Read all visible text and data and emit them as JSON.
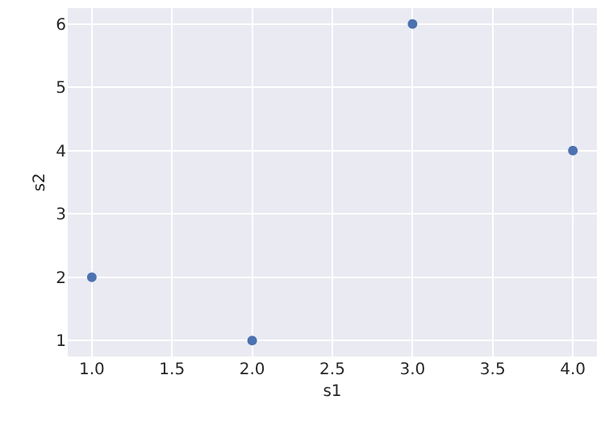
{
  "chart_data": {
    "type": "scatter",
    "xlabel": "s1",
    "ylabel": "s2",
    "x": [
      1,
      2,
      3,
      4
    ],
    "series": [
      {
        "color": "#4c72b0",
        "values": [
          2,
          1,
          6,
          4
        ]
      }
    ],
    "xlim": [
      0.85,
      4.15
    ],
    "ylim": [
      0.75,
      6.25
    ],
    "xticks": [
      {
        "value": 1,
        "label": "1.0"
      },
      {
        "value": 1.5,
        "label": "1.5"
      },
      {
        "value": 2,
        "label": "2.0"
      },
      {
        "value": 2.5,
        "label": "2.5"
      },
      {
        "value": 3,
        "label": "3.0"
      },
      {
        "value": 3.5,
        "label": "3.5"
      },
      {
        "value": 4,
        "label": "4.0"
      }
    ],
    "yticks": [
      1,
      2,
      3,
      4,
      5,
      6
    ],
    "grid": true,
    "legend": false,
    "marker": "circle"
  }
}
